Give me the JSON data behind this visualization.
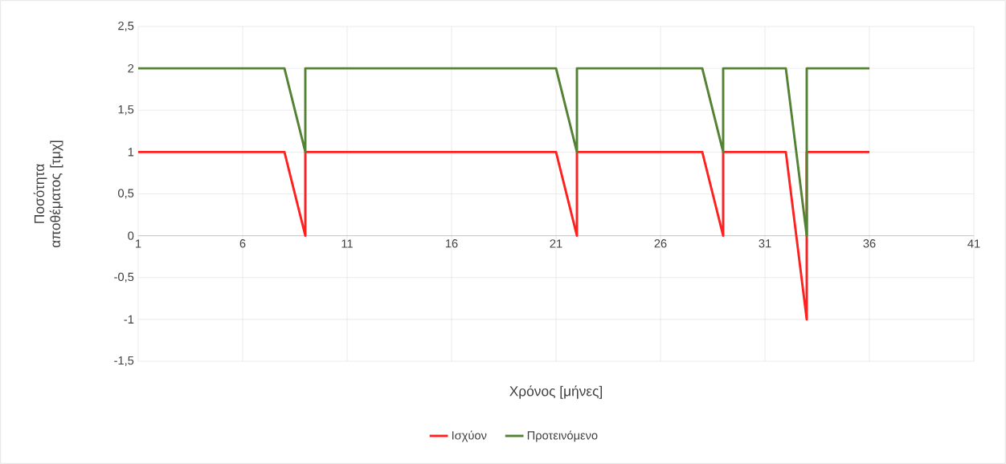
{
  "chart_data": {
    "type": "line",
    "xlabel": "Χρόνος [μήνες]",
    "ylabel": "Ποσότητα αποθέματος [τμχ]",
    "xlim": [
      1,
      41
    ],
    "xticks": [
      1,
      6,
      11,
      16,
      21,
      26,
      31,
      36,
      41
    ],
    "ylim": [
      -1.5,
      2.5
    ],
    "yticks": [
      {
        "value": -1.5,
        "label": "-1,5"
      },
      {
        "value": -1,
        "label": "-1"
      },
      {
        "value": -0.5,
        "label": "-0,5"
      },
      {
        "value": 0,
        "label": "0"
      },
      {
        "value": 0.5,
        "label": "0,5"
      },
      {
        "value": 1,
        "label": "1"
      },
      {
        "value": 1.5,
        "label": "1,5"
      },
      {
        "value": 2,
        "label": "2"
      },
      {
        "value": 2.5,
        "label": "2,5"
      }
    ],
    "grid": true,
    "legend": "bottom",
    "marker": "none",
    "line_style": "solid",
    "series": [
      {
        "name": "Ισχύον",
        "color": "#ff2020",
        "x": [
          1,
          8,
          9,
          9,
          21,
          22,
          22,
          28,
          29,
          29,
          32,
          33,
          33,
          36
        ],
        "values": [
          1,
          1,
          0,
          1,
          1,
          0,
          1,
          1,
          0,
          1,
          1,
          -1,
          1,
          1
        ]
      },
      {
        "name": "Προτεινόμενο",
        "color": "#548235",
        "x": [
          1,
          8,
          9,
          9,
          21,
          22,
          22,
          28,
          29,
          29,
          32,
          33,
          33,
          36
        ],
        "values": [
          2,
          2,
          1,
          2,
          2,
          1,
          2,
          2,
          1,
          2,
          2,
          0,
          2,
          2
        ]
      }
    ]
  }
}
